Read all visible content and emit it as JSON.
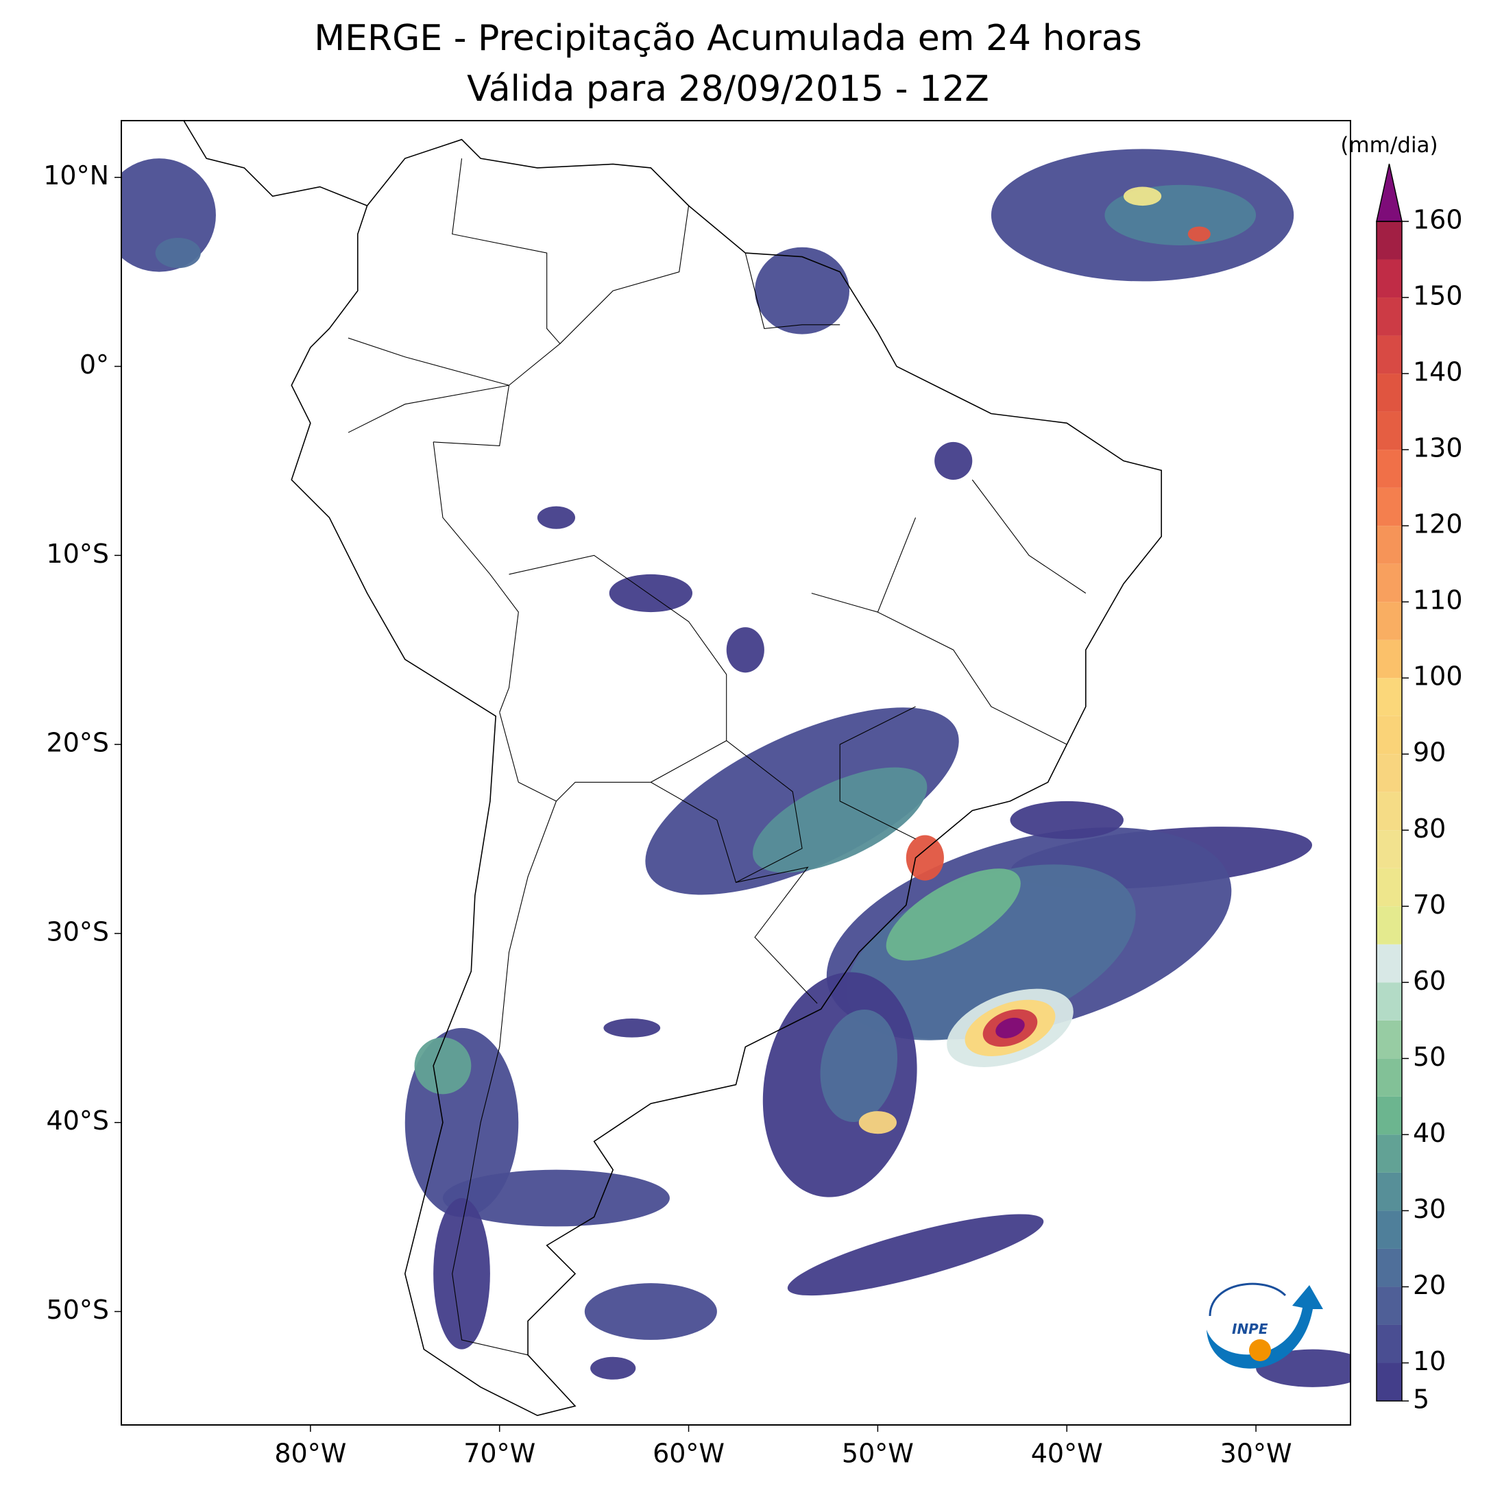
{
  "title": "MERGE - Precipitação Acumulada em 24 horas",
  "subtitle": "Válida para 28/09/2015 - 12Z",
  "xlim": [
    -90,
    -25
  ],
  "ylim": [
    -56,
    13
  ],
  "xticks": [
    {
      "value": -80,
      "label": "80°W"
    },
    {
      "value": -70,
      "label": "70°W"
    },
    {
      "value": -60,
      "label": "60°W"
    },
    {
      "value": -50,
      "label": "50°W"
    },
    {
      "value": -40,
      "label": "40°W"
    },
    {
      "value": -30,
      "label": "30°W"
    }
  ],
  "yticks": [
    {
      "value": 10,
      "label": "10°N"
    },
    {
      "value": 0,
      "label": "0°"
    },
    {
      "value": -10,
      "label": "10°S"
    },
    {
      "value": -20,
      "label": "20°S"
    },
    {
      "value": -30,
      "label": "30°S"
    },
    {
      "value": -40,
      "label": "40°S"
    },
    {
      "value": -50,
      "label": "50°S"
    }
  ],
  "colorbar": {
    "label": "(mm/dia)",
    "lim": [
      5,
      160
    ],
    "ticks": [
      5,
      10,
      20,
      30,
      40,
      50,
      60,
      70,
      80,
      90,
      100,
      110,
      120,
      130,
      140,
      150,
      160
    ],
    "levels": [
      5,
      10,
      15,
      20,
      25,
      30,
      35,
      40,
      45,
      50,
      55,
      60,
      65,
      70,
      75,
      80,
      85,
      90,
      95,
      100,
      105,
      110,
      115,
      120,
      125,
      130,
      135,
      140,
      145,
      150,
      155,
      160
    ],
    "colors": [
      "#433e8a",
      "#4a4e92",
      "#4f5f97",
      "#4f6f9a",
      "#4f7f9a",
      "#578f98",
      "#62a295",
      "#6cb58f",
      "#82c197",
      "#97cca3",
      "#b3dbc6",
      "#d8e8e6",
      "#e4ea8e",
      "#eee68c",
      "#f2e28e",
      "#f5dc86",
      "#f8d57f",
      "#fad378",
      "#fbd77a",
      "#fbc16a",
      "#f9ae62",
      "#f8a05e",
      "#f69458",
      "#f47f4e",
      "#f07048",
      "#e55e42",
      "#e05540",
      "#d84a44",
      "#cc3b45",
      "#c02c46",
      "#a21f44"
    ],
    "extend_color": "#7e0c79"
  },
  "logo_text": "INPE"
}
